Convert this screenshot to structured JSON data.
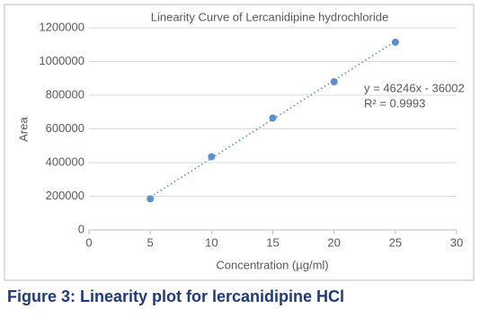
{
  "chart_data": {
    "type": "scatter",
    "title": "Linearity Curve of Lercanidipine hydrochloride",
    "x_label": "Concentration (µg/ml)",
    "y_label": "Area",
    "x": [
      5,
      10,
      15,
      20,
      25
    ],
    "values": [
      185000,
      435000,
      665000,
      880000,
      1115000
    ],
    "color": "#5b8fd0",
    "xlim": [
      0,
      30
    ],
    "xticks": [
      0,
      5,
      10,
      15,
      20,
      25,
      30
    ],
    "ylim": [
      0,
      1200000
    ],
    "yticks": [
      0,
      200000,
      400000,
      600000,
      800000,
      1000000,
      1200000
    ],
    "grid": true,
    "trendline": {
      "slope": 46246,
      "intercept": -36002,
      "equation": "y = 46246x - 36002",
      "r_squared_label": "R² = 0.9993"
    }
  },
  "caption": "Figure 3: Linearity plot for lercanidipine HCl"
}
